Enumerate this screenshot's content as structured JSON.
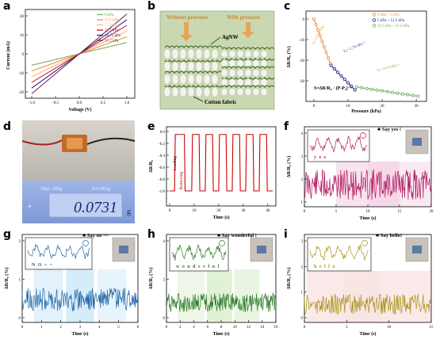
{
  "panels": {
    "a": {
      "label": "a",
      "ylabel": "Current (mA)",
      "xlabel": "Voltage (V)",
      "xticks": [
        "-1.0",
        "-0.5",
        "0.0",
        "0.5",
        "1.0"
      ],
      "yticks": [
        "20",
        "10",
        "0",
        "-10",
        "-20"
      ],
      "legend": [
        "0 kPa",
        "3.75 kPa",
        "7.5 kPa",
        "12.5 kPa",
        "18.75 kPa",
        "31.2 kPa"
      ],
      "colors": [
        "#6aa84f",
        "#e69138",
        "#f6b26b",
        "#cc0000",
        "#1c1c8c",
        "#741b47"
      ]
    },
    "b": {
      "label": "b",
      "without": "Without pressure",
      "with": "With pressure",
      "agnw": "AgNW",
      "fabric": "Cotton fabric"
    },
    "c": {
      "label": "c",
      "ylabel": "ΔR/R₀ (%)",
      "xlabel": "Pressure (kPa)",
      "xticks": [
        "0",
        "10",
        "20",
        "30"
      ],
      "yticks": [
        "0",
        "-10",
        "-20",
        "-30"
      ],
      "legend": [
        "0 kPa ~ 5 kPa",
        "5 kPa ~ 12.5 kPa",
        "12.5 kPa ~ 31.2 kPa"
      ],
      "slopes": [
        "S₁=-4.5%·kPa⁻¹",
        "S₂=-1.7%·kPa⁻¹",
        "S₃=-0.5%·kPa⁻¹"
      ],
      "formula": "S=ΔR/R₀ · (P-P₀)⁻¹"
    },
    "d": {
      "label": "d",
      "reading": "0.0731",
      "scale_top": "Max: 200g",
      "scale_top2": "d=0.001g",
      "unit": "g"
    },
    "e": {
      "label": "e",
      "ylabel": "ΔR/R₀",
      "xlabel": "Time (s)",
      "xticks": [
        "0",
        "10",
        "20",
        "30",
        "40"
      ],
      "yticks": [
        "0.0",
        "-0.2",
        "-0.4",
        "-0.6",
        "-0.8",
        "-1.0"
      ],
      "ann1": "Loading",
      "ann2": "Removing"
    },
    "f": {
      "label": "f",
      "ylabel": "ΔR/R₀ (%)",
      "xlabel": "Time (s)",
      "speech": "Say yes !",
      "word": "y e s",
      "xticks": [
        "0",
        "5",
        "10",
        "15",
        "20"
      ],
      "yticks": [
        "4",
        "3",
        "2",
        "1"
      ]
    },
    "g": {
      "label": "g",
      "ylabel": "ΔR/R₀ (%)",
      "xlabel": "Time (s)",
      "speech": "Say no ~~",
      "word": "N O ~ ~",
      "xticks": [
        "0",
        "1",
        "2",
        "3",
        "4",
        "5",
        "6"
      ],
      "yticks": [
        "2",
        "1",
        "0"
      ]
    },
    "h": {
      "label": "h",
      "ylabel": "ΔR/R₀ (%)",
      "xlabel": "Time (s)",
      "speech": "Say wonderful !",
      "word": "w o n d e r f u l",
      "xticks": [
        "0",
        "2",
        "4",
        "6",
        "8",
        "10",
        "12",
        "14",
        "16"
      ],
      "yticks": [
        "4",
        "2",
        "0"
      ]
    },
    "i": {
      "label": "i",
      "ylabel": "ΔR/R₀ (%)",
      "xlabel": "Time (s)",
      "speech": "Say hello!",
      "word": "h e l l o",
      "xticks": [
        "0",
        "5",
        "10",
        "15"
      ],
      "yticks": [
        "3",
        "2",
        "1",
        "0"
      ]
    }
  }
}
